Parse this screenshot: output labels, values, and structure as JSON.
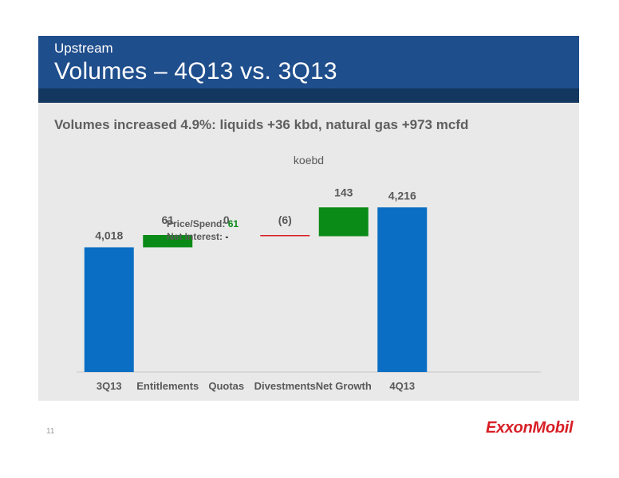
{
  "header": {
    "kicker": "Upstream",
    "title": "Volumes – 4Q13 vs. 3Q13"
  },
  "subtitle": "Volumes increased 4.9%: liquids +36 kbd, natural gas +973 mcfd",
  "page_number": "11",
  "logo_text": "ExxonMobil",
  "colors": {
    "total_bar": "#0a6fc4",
    "increase_bar": "#0a8a16",
    "decrease_bar": "#d71f26",
    "label_text": "#595959",
    "green_text": "#0a8a16"
  },
  "annotation": {
    "price_label": "Price/Spend:",
    "price_value": "61",
    "net_label": "Net Interest:",
    "net_value": "-"
  },
  "chart_data": {
    "type": "bar",
    "subtype": "waterfall",
    "unit_label": "koebd",
    "categories": [
      "3Q13",
      "Entitlements",
      "Quotas",
      "Divestments",
      "Net Growth",
      "4Q13"
    ],
    "values": [
      4018,
      61,
      0,
      -6,
      143,
      4216
    ],
    "value_labels": [
      "4,018",
      "61",
      "0",
      "(6)",
      "143",
      "4,216"
    ],
    "kinds": [
      "total",
      "increase",
      "increase",
      "decrease",
      "increase",
      "total"
    ],
    "ylim": [
      3400,
      4300
    ],
    "grid": false,
    "legend": "none"
  }
}
